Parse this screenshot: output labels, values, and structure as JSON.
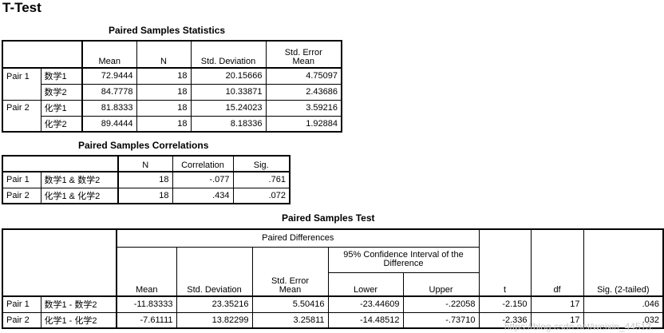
{
  "page_title": "T-Test",
  "stats": {
    "title": "Paired Samples Statistics",
    "headers": [
      "Mean",
      "N",
      "Std. Deviation",
      "Std. Error\nMean"
    ],
    "rows": [
      {
        "pair": "Pair 1",
        "var": "数学1",
        "mean": "72.9444",
        "n": "18",
        "sd": "20.15666",
        "se": "4.75097"
      },
      {
        "pair": "",
        "var": "数学2",
        "mean": "84.7778",
        "n": "18",
        "sd": "10.33871",
        "se": "2.43686"
      },
      {
        "pair": "Pair 2",
        "var": "化学1",
        "mean": "81.8333",
        "n": "18",
        "sd": "15.24023",
        "se": "3.59216"
      },
      {
        "pair": "",
        "var": "化学2",
        "mean": "89.4444",
        "n": "18",
        "sd": "8.18336",
        "se": "1.92884"
      }
    ]
  },
  "corr": {
    "title": "Paired Samples Correlations",
    "headers": [
      "N",
      "Correlation",
      "Sig."
    ],
    "rows": [
      {
        "pair": "Pair 1",
        "var": "数学1 & 数学2",
        "n": "18",
        "corr": "-.077",
        "sig": ".761"
      },
      {
        "pair": "Pair 2",
        "var": "化学1 & 化学2",
        "n": "18",
        "corr": ".434",
        "sig": ".072"
      }
    ]
  },
  "test": {
    "title": "Paired Samples Test",
    "group_header": "Paired Differences",
    "ci_header": "95% Confidence Interval of the\nDifference",
    "headers": {
      "mean": "Mean",
      "sd": "Std. Deviation",
      "se": "Std. Error\nMean",
      "lower": "Lower",
      "upper": "Upper",
      "t": "t",
      "df": "df",
      "sig": "Sig. (2-tailed)"
    },
    "rows": [
      {
        "pair": "Pair 1",
        "var": "数学1 - 数学2",
        "mean": "-11.83333",
        "sd": "23.35216",
        "se": "5.50416",
        "lower": "-23.44609",
        "upper": "-.22058",
        "t": "-2.150",
        "df": "17",
        "sig": ".046"
      },
      {
        "pair": "Pair 2",
        "var": "化学1 - 化学2",
        "mean": "-7.61111",
        "sd": "13.82299",
        "se": "3.25811",
        "lower": "-14.48512",
        "upper": "-.73710",
        "t": "-2.336",
        "df": "17",
        "sig": ".032"
      }
    ]
  },
  "watermark": "https://blog.csdn.net/weixin_44513..."
}
